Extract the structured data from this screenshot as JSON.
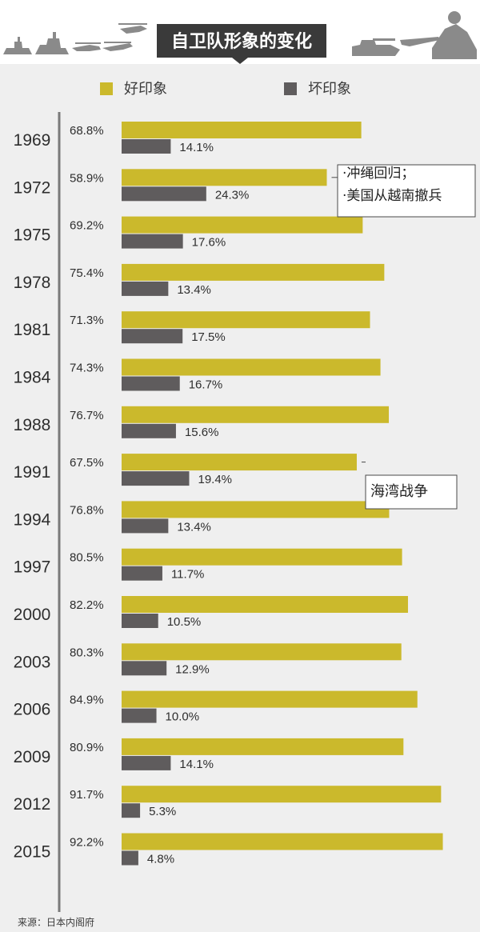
{
  "title": "自卫队形象的变化",
  "legend": {
    "good": "好印象",
    "bad": "坏印象"
  },
  "colors": {
    "good": "#cbb92c",
    "bad": "#5f5c5d",
    "title_bg": "#3a3a3a",
    "axis": "#7a7a7a"
  },
  "annotations": [
    {
      "year": "1972",
      "lines": [
        "·冲绳回归；",
        "·美国从越南撤兵"
      ]
    },
    {
      "year": "1991",
      "lines": [
        "海湾战争"
      ]
    }
  ],
  "source": "来源：日本内阁府",
  "chart_data": {
    "type": "bar",
    "orientation": "horizontal",
    "title": "自卫队形象的变化",
    "categories": [
      "1969",
      "1972",
      "1975",
      "1978",
      "1981",
      "1984",
      "1988",
      "1991",
      "1994",
      "1997",
      "2000",
      "2003",
      "2006",
      "2009",
      "2012",
      "2015"
    ],
    "series": [
      {
        "name": "好印象",
        "values": [
          68.8,
          58.9,
          69.2,
          75.4,
          71.3,
          74.3,
          76.7,
          67.5,
          76.8,
          80.5,
          82.2,
          80.3,
          84.9,
          80.9,
          91.7,
          92.2
        ]
      },
      {
        "name": "坏印象",
        "values": [
          14.1,
          24.3,
          17.6,
          13.4,
          17.5,
          16.7,
          15.6,
          19.4,
          13.4,
          11.7,
          10.5,
          12.9,
          10.0,
          14.1,
          5.3,
          4.8
        ]
      }
    ],
    "value_labels": {
      "good": [
        "68.8%",
        "58.9%",
        "69.2%",
        "75.4%",
        "71.3%",
        "74.3%",
        "76.7%",
        "67.5%",
        "76.8%",
        "80.5%",
        "82.2%",
        "80.3%",
        "84.9%",
        "80.9%",
        "91.7%",
        "92.2%"
      ],
      "bad": [
        "14.1%",
        "24.3%",
        "17.6%",
        "13.4%",
        "17.5%",
        "16.7%",
        "15.6%",
        "19.4%",
        "13.4%",
        "11.7%",
        "10.5%",
        "12.9%",
        "10.0%",
        "14.1%",
        "5.3%",
        "4.8%"
      ]
    },
    "grid": false,
    "legend_position": "top"
  }
}
